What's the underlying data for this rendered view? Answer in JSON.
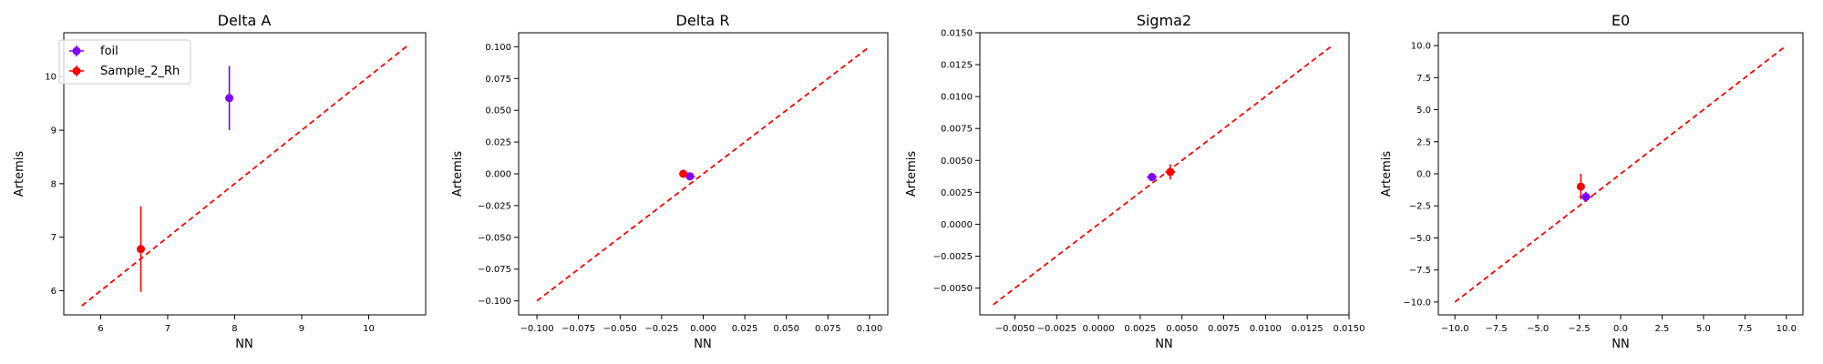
{
  "chart_data": [
    {
      "type": "scatter",
      "title": "Delta A",
      "xlabel": "NN",
      "ylabel": "Artemis",
      "xlim": [
        5.45,
        10.85
      ],
      "ylim": [
        5.55,
        10.82
      ],
      "xticks": [
        6,
        7,
        8,
        9,
        10
      ],
      "xtick_labels": [
        "6",
        "7",
        "8",
        "9",
        "10"
      ],
      "yticks": [
        6,
        7,
        8,
        9,
        10
      ],
      "ytick_labels": [
        "6",
        "7",
        "8",
        "9",
        "10"
      ],
      "legend": {
        "position": "upper left",
        "entries": [
          "foil",
          "Sample_2_Rh"
        ]
      },
      "identity_line": {
        "from": 5.72,
        "to": 10.6,
        "color": "#ff0000",
        "style": "dashed"
      },
      "series": [
        {
          "name": "foil",
          "color": "#8000ff",
          "points": [
            {
              "x": 7.92,
              "y": 9.6,
              "xerr": 0.0,
              "yerr": 0.6
            }
          ]
        },
        {
          "name": "Sample_2_Rh",
          "color": "#ff0000",
          "points": [
            {
              "x": 6.6,
              "y": 6.78,
              "xerr": 0.0,
              "yerr": 0.8
            }
          ]
        }
      ]
    },
    {
      "type": "scatter",
      "title": "Delta R",
      "xlabel": "NN",
      "ylabel": "Artemis",
      "xlim": [
        -0.111,
        0.111
      ],
      "ylim": [
        -0.111,
        0.111
      ],
      "xticks": [
        -0.1,
        -0.075,
        -0.05,
        -0.025,
        0.0,
        0.025,
        0.05,
        0.075,
        0.1
      ],
      "xtick_labels": [
        "−0.100",
        "−0.075",
        "−0.050",
        "−0.025",
        "0.000",
        "0.025",
        "0.050",
        "0.075",
        "0.100"
      ],
      "yticks": [
        -0.1,
        -0.075,
        -0.05,
        -0.025,
        0.0,
        0.025,
        0.05,
        0.075,
        0.1
      ],
      "ytick_labels": [
        "−0.100",
        "−0.075",
        "−0.050",
        "−0.025",
        "0.000",
        "0.025",
        "0.050",
        "0.075",
        "0.100"
      ],
      "identity_line": {
        "from": -0.1,
        "to": 0.1,
        "color": "#ff0000",
        "style": "dashed"
      },
      "series": [
        {
          "name": "foil",
          "color": "#8000ff",
          "points": [
            {
              "x": -0.008,
              "y": -0.002,
              "xerr": 0.003,
              "yerr": 0.002
            }
          ]
        },
        {
          "name": "Sample_2_Rh",
          "color": "#ff0000",
          "points": [
            {
              "x": -0.012,
              "y": 0.0,
              "xerr": 0.002,
              "yerr": 0.003
            }
          ]
        }
      ]
    },
    {
      "type": "scatter",
      "title": "Sigma2",
      "xlabel": "NN",
      "ylabel": "Artemis",
      "xlim": [
        -0.0071,
        0.015
      ],
      "ylim": [
        -0.0071,
        0.015
      ],
      "xticks": [
        -0.005,
        -0.0025,
        0.0,
        0.0025,
        0.005,
        0.0075,
        0.01,
        0.0125,
        0.015
      ],
      "xtick_labels": [
        "−0.0050",
        "−0.0025",
        "0.0000",
        "0.0025",
        "0.0050",
        "0.0075",
        "0.0100",
        "0.0125",
        "0.0150"
      ],
      "yticks": [
        -0.005,
        -0.0025,
        0.0,
        0.0025,
        0.005,
        0.0075,
        0.01,
        0.0125,
        0.015
      ],
      "ytick_labels": [
        "−0.0050",
        "−0.0025",
        "0.0000",
        "0.0025",
        "0.0050",
        "0.0075",
        "0.0100",
        "0.0125",
        "0.0150"
      ],
      "identity_line": {
        "from": -0.0063,
        "to": 0.014,
        "color": "#ff0000",
        "style": "dashed"
      },
      "series": [
        {
          "name": "foil",
          "color": "#8000ff",
          "points": [
            {
              "x": 0.0032,
              "y": 0.0037,
              "xerr": 0.0003,
              "yerr": 0.0003
            }
          ]
        },
        {
          "name": "Sample_2_Rh",
          "color": "#ff0000",
          "points": [
            {
              "x": 0.0043,
              "y": 0.0041,
              "xerr": 0.0003,
              "yerr": 0.0006
            }
          ]
        }
      ]
    },
    {
      "type": "scatter",
      "title": "E0",
      "xlabel": "NN",
      "ylabel": "Artemis",
      "xlim": [
        -11.0,
        11.0
      ],
      "ylim": [
        -11.0,
        11.0
      ],
      "xticks": [
        -10,
        -7.5,
        -5,
        -2.5,
        0,
        2.5,
        5,
        7.5,
        10
      ],
      "xtick_labels": [
        "−10.0",
        "−7.5",
        "−5.0",
        "−2.5",
        "0.0",
        "2.5",
        "5.0",
        "7.5",
        "10.0"
      ],
      "yticks": [
        -10,
        -7.5,
        -5,
        -2.5,
        0,
        2.5,
        5,
        7.5,
        10
      ],
      "ytick_labels": [
        "−10.0",
        "−7.5",
        "−5.0",
        "−2.5",
        "0.0",
        "2.5",
        "5.0",
        "7.5",
        "10.0"
      ],
      "identity_line": {
        "from": -10,
        "to": 10,
        "color": "#ff0000",
        "style": "dashed"
      },
      "series": [
        {
          "name": "foil",
          "color": "#8000ff",
          "points": [
            {
              "x": -2.1,
              "y": -1.8,
              "xerr": 0.4,
              "yerr": 0.4
            }
          ]
        },
        {
          "name": "Sample_2_Rh",
          "color": "#ff0000",
          "points": [
            {
              "x": -2.4,
              "y": -1.0,
              "xerr": 0.2,
              "yerr": 1.0
            }
          ]
        }
      ]
    }
  ]
}
